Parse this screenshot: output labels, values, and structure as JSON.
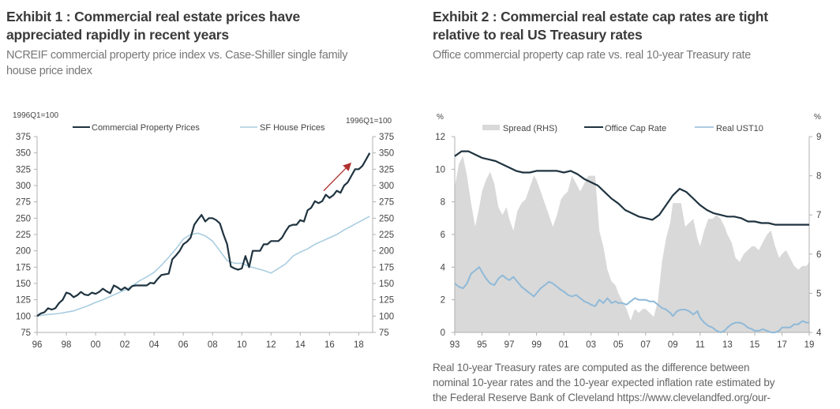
{
  "exhibit1": {
    "title_line1": "Exhibit 1 : Commercial real estate prices have",
    "title_line2": "appreciated rapidly in recent years",
    "subtitle_line1": "NCREIF commercial property price index vs. Case-Shiller single family",
    "subtitle_line2": "house price index"
  },
  "exhibit2": {
    "title_line1": "Exhibit 2 : Commercial real estate cap rates are tight",
    "title_line2": "relative to real US Treasury rates",
    "subtitle": "Office commercial property cap rate vs. real 10-year Treasury rate",
    "note_line1": "Real 10-year Treasury rates are computed as the difference between",
    "note_line2": "nominal 10-year rates and the 10-year expected inflation rate estimated by",
    "note_line3": "the Federal Reserve Bank of Cleveland https://www.clevelandfed.org/our-"
  },
  "chart_data": [
    {
      "type": "line",
      "title": "Exhibit 1 : Commercial real estate prices have appreciated rapidly in recent years",
      "left_axis_label": "1996Q1=100",
      "right_axis_label": "1996Q1=100",
      "ylim": [
        75,
        375
      ],
      "yticks": [
        75,
        100,
        125,
        150,
        175,
        200,
        225,
        250,
        275,
        300,
        325,
        350,
        375
      ],
      "xlim": [
        1996,
        2018.9
      ],
      "xticks": [
        1996,
        1998,
        2000,
        2002,
        2004,
        2006,
        2008,
        2010,
        2012,
        2014,
        2016,
        2018
      ],
      "xtick_labels": [
        "96",
        "98",
        "00",
        "02",
        "04",
        "06",
        "08",
        "10",
        "12",
        "14",
        "16",
        "18"
      ],
      "legend": "top",
      "annotation": "red upward arrow near 2016-2017",
      "colors": {
        "commercial": "#1f3340",
        "house": "#a9cde0",
        "arrow": "#b03030"
      },
      "series": [
        {
          "name": "Commercial Property Prices",
          "x": [
            1996,
            1996.25,
            1996.5,
            1996.75,
            1997,
            1997.25,
            1997.5,
            1997.75,
            1998,
            1998.25,
            1998.5,
            1998.75,
            1999,
            1999.25,
            1999.5,
            1999.75,
            2000,
            2000.25,
            2000.5,
            2000.75,
            2001,
            2001.25,
            2001.5,
            2001.75,
            2002,
            2002.25,
            2002.5,
            2002.75,
            2003,
            2003.25,
            2003.5,
            2003.75,
            2004,
            2004.25,
            2004.5,
            2004.75,
            2005,
            2005.25,
            2005.5,
            2005.75,
            2006,
            2006.25,
            2006.5,
            2006.75,
            2007,
            2007.25,
            2007.5,
            2007.75,
            2008,
            2008.25,
            2008.5,
            2008.75,
            2009,
            2009.25,
            2009.5,
            2009.75,
            2010,
            2010.25,
            2010.5,
            2010.75,
            2011,
            2011.25,
            2011.5,
            2011.75,
            2012,
            2012.25,
            2012.5,
            2012.75,
            2013,
            2013.25,
            2013.5,
            2013.75,
            2014,
            2014.25,
            2014.5,
            2014.75,
            2015,
            2015.25,
            2015.5,
            2015.75,
            2016,
            2016.25,
            2016.5,
            2016.75,
            2017,
            2017.25,
            2017.5,
            2017.75,
            2018,
            2018.25,
            2018.5,
            2018.75
          ],
          "values": [
            100,
            104,
            106,
            112,
            110,
            112,
            120,
            125,
            136,
            134,
            129,
            132,
            137,
            133,
            132,
            136,
            134,
            137,
            142,
            138,
            135,
            147,
            144,
            140,
            144,
            140,
            146,
            147,
            147,
            147,
            147,
            151,
            150,
            157,
            163,
            164,
            165,
            187,
            193,
            200,
            210,
            214,
            220,
            240,
            248,
            255,
            245,
            250,
            250,
            247,
            242,
            225,
            210,
            176,
            173,
            171,
            173,
            192,
            175,
            200,
            200,
            200,
            210,
            210,
            215,
            215,
            215,
            220,
            230,
            238,
            240,
            240,
            247,
            245,
            262,
            266,
            276,
            273,
            276,
            286,
            281,
            285,
            292,
            289,
            300,
            305,
            315,
            325,
            325,
            330,
            340,
            350
          ]
        },
        {
          "name": "SF House Prices",
          "x": [
            1996,
            1996.5,
            1997,
            1997.5,
            1998,
            1998.5,
            1999,
            1999.5,
            2000,
            2000.5,
            2001,
            2001.5,
            2002,
            2002.5,
            2003,
            2003.5,
            2004,
            2004.5,
            2005,
            2005.5,
            2006,
            2006.5,
            2007,
            2007.5,
            2008,
            2008.5,
            2009,
            2009.5,
            2010,
            2010.5,
            2011,
            2011.5,
            2012,
            2012.5,
            2013,
            2013.5,
            2014,
            2014.5,
            2015,
            2015.5,
            2016,
            2016.5,
            2017,
            2017.5,
            2018,
            2018.5,
            2018.75
          ],
          "values": [
            100,
            102,
            103,
            104,
            106,
            108,
            112,
            116,
            121,
            125,
            130,
            135,
            140,
            146,
            154,
            160,
            167,
            178,
            190,
            203,
            218,
            225,
            227,
            223,
            215,
            200,
            185,
            181,
            181,
            176,
            173,
            170,
            166,
            173,
            180,
            192,
            198,
            203,
            210,
            215,
            220,
            225,
            232,
            238,
            244,
            250,
            253
          ]
        }
      ]
    },
    {
      "type": "area",
      "title": "Exhibit 2 : Commercial real estate cap rates are tight relative to real US Treasury rates",
      "left_axis_label": "%",
      "right_axis_label": "%",
      "ylim_left": [
        0,
        12
      ],
      "yticks_left": [
        0,
        2,
        4,
        6,
        8,
        10,
        12
      ],
      "ylim_right": [
        4,
        9
      ],
      "yticks_right": [
        4,
        5,
        6,
        7,
        8,
        9
      ],
      "xlim": [
        1993,
        2019
      ],
      "xticks": [
        1993,
        1995,
        1997,
        1999,
        2001,
        2003,
        2005,
        2007,
        2009,
        2011,
        2013,
        2015,
        2017,
        2019
      ],
      "xtick_labels": [
        "93",
        "95",
        "97",
        "99",
        "01",
        "03",
        "05",
        "07",
        "09",
        "11",
        "13",
        "15",
        "17",
        "19"
      ],
      "legend": "top",
      "colors": {
        "spread": "#d9d9d9",
        "cap_rate": "#1f3340",
        "real_ust10": "#8fb9d8"
      },
      "series": [
        {
          "name": "Spread (RHS)",
          "axis": "right",
          "x": [
            1993,
            1993.3,
            1993.6,
            1993.9,
            1994.2,
            1994.5,
            1994.8,
            1995,
            1995.3,
            1995.6,
            1995.9,
            1996.2,
            1996.5,
            1996.8,
            1997,
            1997.3,
            1997.6,
            1997.9,
            1998.2,
            1998.5,
            1998.8,
            1999,
            1999.3,
            1999.6,
            1999.9,
            2000.2,
            2000.5,
            2000.8,
            2001,
            2001.3,
            2001.6,
            2001.9,
            2002.2,
            2002.5,
            2002.8,
            2003,
            2003.3,
            2003.6,
            2003.9,
            2004.2,
            2004.5,
            2004.8,
            2005,
            2005.3,
            2005.6,
            2005.9,
            2006.2,
            2006.5,
            2006.8,
            2007,
            2007.3,
            2007.6,
            2007.9,
            2008.2,
            2008.5,
            2008.8,
            2009,
            2009.3,
            2009.6,
            2009.9,
            2010.2,
            2010.5,
            2010.8,
            2011,
            2011.3,
            2011.6,
            2011.9,
            2012.2,
            2012.5,
            2012.8,
            2013,
            2013.3,
            2013.6,
            2013.9,
            2014.2,
            2014.5,
            2014.8,
            2015,
            2015.3,
            2015.6,
            2015.9,
            2016.2,
            2016.5,
            2016.8,
            2017,
            2017.3,
            2017.6,
            2017.9,
            2018.2,
            2018.5,
            2018.8,
            2019
          ],
          "values": [
            7.7,
            8.3,
            8.5,
            8.0,
            7.3,
            6.7,
            7.2,
            7.6,
            7.9,
            8.1,
            7.8,
            7.2,
            7.0,
            7.2,
            6.9,
            6.6,
            7.1,
            7.3,
            7.4,
            7.7,
            8.0,
            7.9,
            7.6,
            7.3,
            7.0,
            6.7,
            7.0,
            7.4,
            7.5,
            7.6,
            8.0,
            7.8,
            7.6,
            7.8,
            8.0,
            8.0,
            8.0,
            6.6,
            6.2,
            5.6,
            5.3,
            5.2,
            5.0,
            4.8,
            4.6,
            4.3,
            4.6,
            4.5,
            4.6,
            4.6,
            4.5,
            4.4,
            4.8,
            5.8,
            6.4,
            6.8,
            7.3,
            7.3,
            7.3,
            6.7,
            6.8,
            6.9,
            6.4,
            6.2,
            6.6,
            6.9,
            6.9,
            7.0,
            6.9,
            6.7,
            6.5,
            6.3,
            5.9,
            5.8,
            6.0,
            6.1,
            6.2,
            6.2,
            6.1,
            6.3,
            6.5,
            6.6,
            6.2,
            5.9,
            6.0,
            6.1,
            5.9,
            5.7,
            5.6,
            5.7,
            5.7,
            5.8
          ]
        },
        {
          "name": "Office Cap Rate",
          "axis": "left",
          "x": [
            1993,
            1993.5,
            1994,
            1994.5,
            1995,
            1995.5,
            1996,
            1996.5,
            1997,
            1997.5,
            1998,
            1998.5,
            1999,
            1999.5,
            2000,
            2000.5,
            2001,
            2001.5,
            2002,
            2002.5,
            2003,
            2003.5,
            2004,
            2004.5,
            2005,
            2005.5,
            2006,
            2006.5,
            2007,
            2007.5,
            2008,
            2008.5,
            2009,
            2009.5,
            2010,
            2010.5,
            2011,
            2011.5,
            2012,
            2012.5,
            2013,
            2013.5,
            2014,
            2014.5,
            2015,
            2015.5,
            2016,
            2016.5,
            2017,
            2017.5,
            2018,
            2018.5,
            2019
          ],
          "values": [
            10.8,
            11.1,
            11.1,
            10.9,
            10.7,
            10.6,
            10.5,
            10.3,
            10.1,
            9.9,
            9.8,
            9.8,
            9.9,
            9.9,
            9.9,
            9.9,
            9.8,
            9.9,
            9.7,
            9.4,
            9.2,
            9.0,
            8.6,
            8.2,
            7.9,
            7.5,
            7.3,
            7.1,
            7.0,
            6.9,
            7.2,
            7.8,
            8.4,
            8.8,
            8.6,
            8.2,
            7.8,
            7.5,
            7.3,
            7.2,
            7.1,
            7.1,
            7.0,
            6.8,
            6.8,
            6.7,
            6.7,
            6.6,
            6.6,
            6.6,
            6.6,
            6.6,
            6.6
          ]
        },
        {
          "name": "Real UST10",
          "axis": "left",
          "x": [
            1993,
            1993.3,
            1993.6,
            1993.9,
            1994.2,
            1994.5,
            1994.8,
            1995,
            1995.3,
            1995.6,
            1995.9,
            1996.2,
            1996.5,
            1996.8,
            1997,
            1997.3,
            1997.6,
            1997.9,
            1998.2,
            1998.5,
            1998.8,
            1999,
            1999.3,
            1999.6,
            1999.9,
            2000.2,
            2000.5,
            2000.8,
            2001,
            2001.3,
            2001.6,
            2001.9,
            2002.2,
            2002.5,
            2002.8,
            2003,
            2003.3,
            2003.6,
            2003.9,
            2004.2,
            2004.5,
            2004.8,
            2005,
            2005.3,
            2005.6,
            2005.9,
            2006.2,
            2006.5,
            2006.8,
            2007,
            2007.3,
            2007.6,
            2007.9,
            2008.2,
            2008.5,
            2008.8,
            2009,
            2009.3,
            2009.6,
            2009.9,
            2010.2,
            2010.5,
            2010.8,
            2011,
            2011.3,
            2011.6,
            2011.9,
            2012.2,
            2012.5,
            2012.8,
            2013,
            2013.3,
            2013.6,
            2013.9,
            2014.2,
            2014.5,
            2014.8,
            2015,
            2015.3,
            2015.6,
            2015.9,
            2016.2,
            2016.5,
            2016.8,
            2017,
            2017.3,
            2017.6,
            2017.9,
            2018.2,
            2018.5,
            2018.8,
            2019
          ],
          "values": [
            3.0,
            2.8,
            2.7,
            3.0,
            3.6,
            3.8,
            4.0,
            3.7,
            3.3,
            3.0,
            2.9,
            3.3,
            3.5,
            3.3,
            3.2,
            3.4,
            3.1,
            2.8,
            2.6,
            2.4,
            2.2,
            2.4,
            2.7,
            2.9,
            3.1,
            3.0,
            2.8,
            2.6,
            2.5,
            2.3,
            2.2,
            2.3,
            2.1,
            1.9,
            1.8,
            1.7,
            1.6,
            2.0,
            1.8,
            2.1,
            1.8,
            1.9,
            1.8,
            1.8,
            1.7,
            1.9,
            2.1,
            2.0,
            2.0,
            2.0,
            1.9,
            1.9,
            1.7,
            1.5,
            1.4,
            1.2,
            1.0,
            1.3,
            1.4,
            1.4,
            1.3,
            1.1,
            1.3,
            0.9,
            0.6,
            0.4,
            0.3,
            0.1,
            0.0,
            0.1,
            0.3,
            0.5,
            0.6,
            0.6,
            0.5,
            0.3,
            0.2,
            0.1,
            0.1,
            0.2,
            0.1,
            0.0,
            0.0,
            0.1,
            0.3,
            0.3,
            0.3,
            0.5,
            0.5,
            0.7,
            0.6,
            0.6
          ]
        }
      ]
    }
  ]
}
